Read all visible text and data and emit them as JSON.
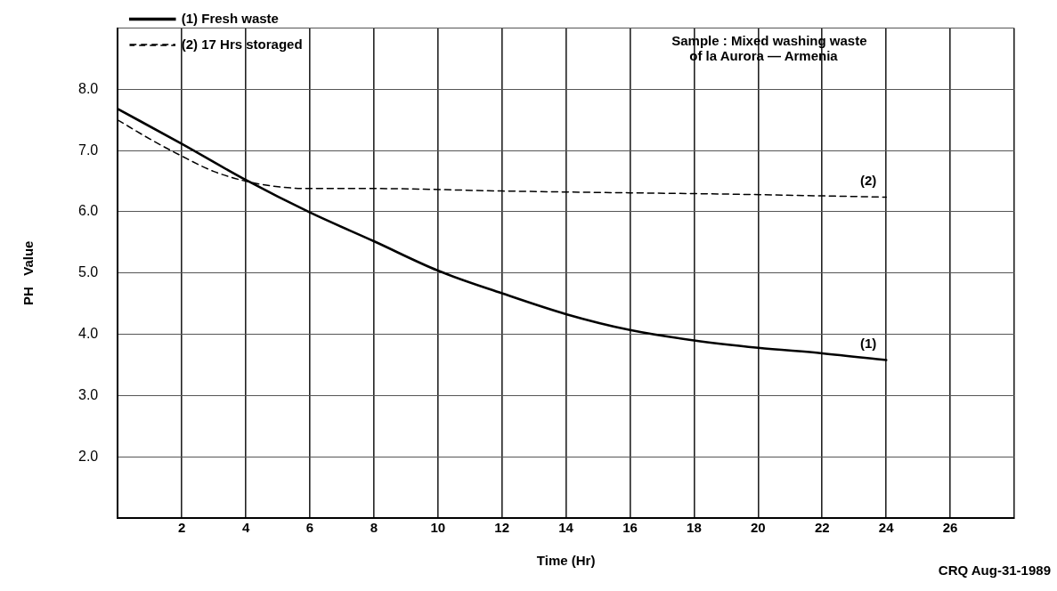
{
  "chart_data": {
    "type": "line",
    "xlabel": "Time (Hr)",
    "ylabel": "PH   Value",
    "xlim": [
      0,
      28
    ],
    "xticks": [
      {
        "value": 0,
        "label": null
      },
      2,
      4,
      6,
      8,
      10,
      12,
      14,
      16,
      18,
      20,
      22,
      24,
      26,
      {
        "value": 28,
        "label": null
      }
    ],
    "ylim": [
      1,
      9
    ],
    "yticks": [
      {
        "value": 1,
        "label": null
      },
      {
        "value": 2,
        "label": "2.0"
      },
      {
        "value": 3,
        "label": "3.0"
      },
      {
        "value": 4,
        "label": "4.0"
      },
      {
        "value": 5,
        "label": "5.0"
      },
      {
        "value": 6,
        "label": "6.0"
      },
      {
        "value": 7,
        "label": "7.0"
      },
      {
        "value": 8,
        "label": "8.0"
      },
      {
        "value": 9,
        "label": null
      }
    ],
    "grid": true,
    "legend": "top left",
    "marker": "none",
    "series": [
      {
        "name": "(1) Fresh waste",
        "color": "#000000",
        "line_style": "solid",
        "x": [
          0,
          2,
          4,
          6,
          8,
          10,
          12,
          14,
          16,
          18,
          20,
          22,
          24
        ],
        "values": [
          7.68,
          7.11,
          6.52,
          5.99,
          5.52,
          5.04,
          4.67,
          4.33,
          4.07,
          3.9,
          3.78,
          3.69,
          3.58
        ]
      },
      {
        "name": "(2) 17 Hrs storaged",
        "color": "#000000",
        "line_style": "dashed",
        "x": [
          0,
          1,
          2,
          3,
          4,
          5,
          6,
          8,
          12,
          16,
          19,
          24
        ],
        "values": [
          7.5,
          7.19,
          6.91,
          6.66,
          6.5,
          6.41,
          6.38,
          6.38,
          6.34,
          6.31,
          6.29,
          6.24
        ]
      }
    ],
    "annotations": [
      "Sample : Mixed washing waste\nof la Aurora — Armenia",
      "CRQ Aug-31-1989",
      {
        "text": "(1)",
        "x": 24,
        "y": 3.58
      },
      {
        "text": "(2)",
        "x": 24,
        "y": 6.24
      }
    ]
  }
}
